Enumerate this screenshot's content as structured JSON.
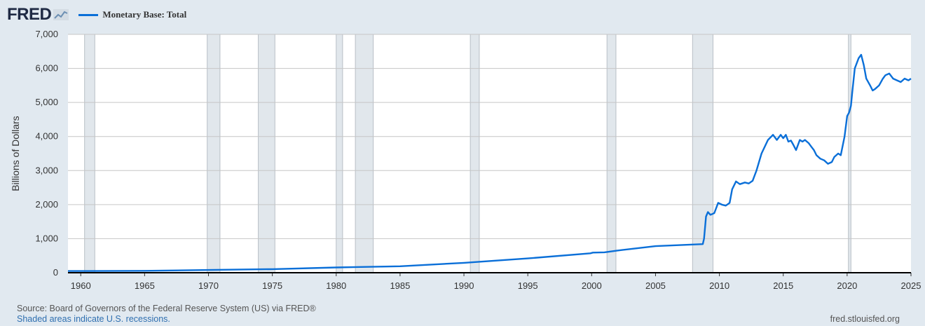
{
  "header": {
    "logo_text": "FRED",
    "logo_icon": "fred-chart-icon"
  },
  "footer": {
    "source": "Source: Board of Governors of the Federal Reserve System (US) via FRED®",
    "note": "Shaded areas indicate U.S. recessions.",
    "url": "fred.stlouisfed.org"
  },
  "colors": {
    "background": "#e1e9f0",
    "plot_background": "#ffffff",
    "series": "#0a6fd8",
    "recession": "#e1e7ec",
    "grid": "#c6c6c6"
  },
  "chart_data": {
    "type": "line",
    "ylabel": "Billions of Dollars",
    "xlim": [
      1959,
      2025
    ],
    "ylim": [
      0,
      7000
    ],
    "yticks": [
      0,
      1000,
      2000,
      3000,
      4000,
      5000,
      6000,
      7000
    ],
    "ytick_labels": [
      "0",
      "1,000",
      "2,000",
      "3,000",
      "4,000",
      "5,000",
      "6,000",
      "7,000"
    ],
    "xticks": [
      1960,
      1965,
      1970,
      1975,
      1980,
      1985,
      1990,
      1995,
      2000,
      2005,
      2010,
      2015,
      2020,
      2025
    ],
    "xtick_labels": [
      "1960",
      "1965",
      "1970",
      "1975",
      "1980",
      "1985",
      "1990",
      "1995",
      "2000",
      "2005",
      "2010",
      "2015",
      "2020",
      "2025"
    ],
    "grid": true,
    "legend_placement": "top-left",
    "recessions": [
      [
        1960.3,
        1961.1
      ],
      [
        1969.9,
        1970.9
      ],
      [
        1973.9,
        1975.2
      ],
      [
        1980.0,
        1980.5
      ],
      [
        1981.5,
        1982.9
      ],
      [
        1990.5,
        1991.2
      ],
      [
        2001.2,
        2001.9
      ],
      [
        2007.9,
        2009.5
      ],
      [
        2020.1,
        2020.3
      ]
    ],
    "series": [
      {
        "name": "Monetary Base: Total",
        "x": [
          1959.0,
          1965.0,
          1970.0,
          1975.0,
          1980.0,
          1985.0,
          1990.0,
          1995.0,
          1999.9,
          2000.1,
          2001.0,
          2002.0,
          2005.0,
          2008.7,
          2008.8,
          2008.95,
          2009.1,
          2009.3,
          2009.6,
          2009.9,
          2010.2,
          2010.5,
          2010.8,
          2011.0,
          2011.3,
          2011.6,
          2012.0,
          2012.3,
          2012.6,
          2012.9,
          2013.3,
          2013.8,
          2014.2,
          2014.5,
          2014.8,
          2015.0,
          2015.2,
          2015.4,
          2015.6,
          2015.8,
          2016.0,
          2016.3,
          2016.5,
          2016.7,
          2017.0,
          2017.2,
          2017.4,
          2017.6,
          2017.9,
          2018.2,
          2018.5,
          2018.8,
          2019.0,
          2019.3,
          2019.5,
          2019.8,
          2020.0,
          2020.15,
          2020.3,
          2020.4,
          2020.6,
          2020.9,
          2021.1,
          2021.3,
          2021.5,
          2021.8,
          2022.0,
          2022.2,
          2022.5,
          2022.8,
          2023.0,
          2023.3,
          2023.6,
          2023.9,
          2024.2,
          2024.5,
          2024.8,
          2025.0
        ],
        "values": [
          50,
          55,
          80,
          105,
          155,
          190,
          290,
          420,
          570,
          590,
          600,
          650,
          780,
          840,
          1000,
          1650,
          1780,
          1700,
          1750,
          2050,
          2000,
          1970,
          2050,
          2450,
          2680,
          2600,
          2650,
          2620,
          2700,
          3000,
          3500,
          3900,
          4050,
          3900,
          4050,
          3950,
          4050,
          3850,
          3880,
          3750,
          3600,
          3900,
          3850,
          3900,
          3800,
          3700,
          3600,
          3450,
          3350,
          3300,
          3200,
          3250,
          3400,
          3500,
          3450,
          4000,
          4600,
          4700,
          4900,
          5300,
          6000,
          6300,
          6400,
          6100,
          5700,
          5500,
          5350,
          5400,
          5500,
          5700,
          5800,
          5850,
          5700,
          5650,
          5600,
          5700,
          5650,
          5700
        ]
      }
    ]
  }
}
